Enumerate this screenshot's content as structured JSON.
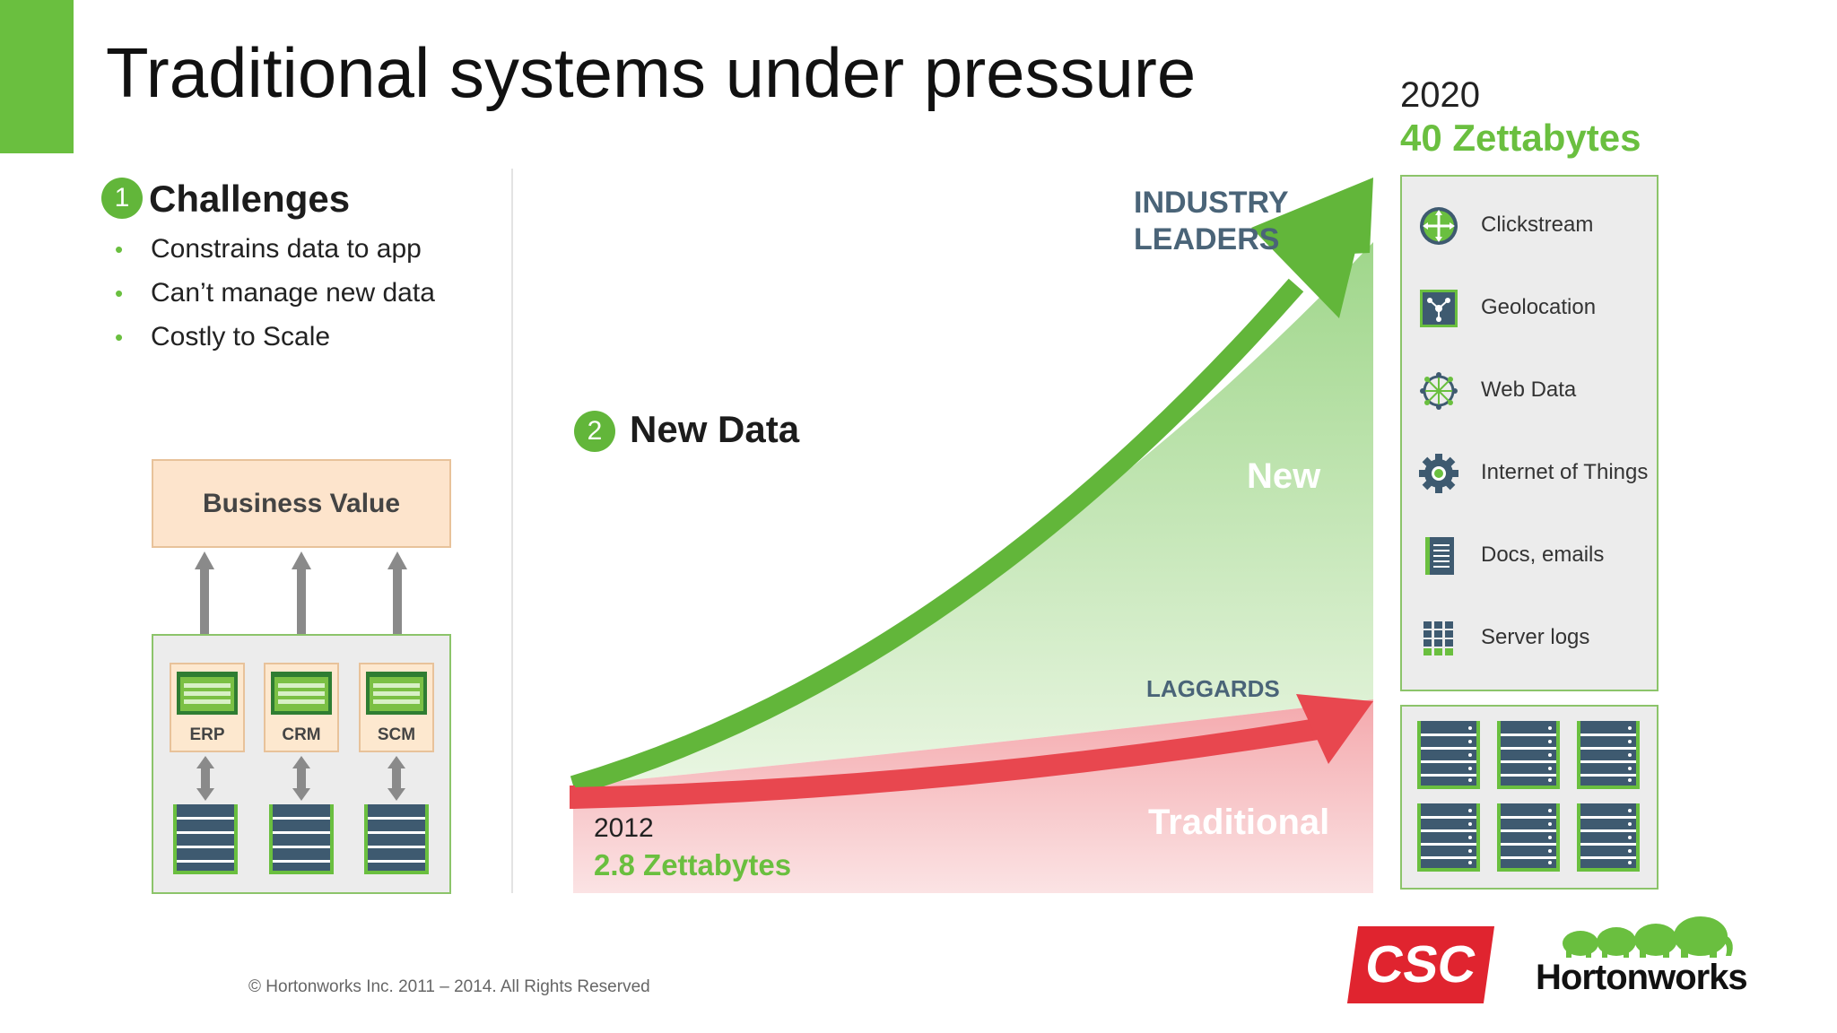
{
  "title": "Traditional systems under pressure",
  "challenges": {
    "number": "1",
    "heading": "Challenges",
    "items": [
      "Constrains data to app",
      "Can’t manage new data",
      "Costly to Scale"
    ]
  },
  "business_value": "Business Value",
  "apps": [
    "ERP",
    "CRM",
    "SCM"
  ],
  "new_data": {
    "number": "2",
    "heading": "New Data"
  },
  "start": {
    "year": "2012",
    "amount": "2.8 Zettabytes"
  },
  "end": {
    "year": "2020",
    "amount": "40 Zettabytes"
  },
  "curve_labels": {
    "industry_leaders": [
      "INDUSTRY",
      "LEADERS"
    ],
    "laggards": "LAGGARDS",
    "new": "New",
    "traditional": "Traditional"
  },
  "sources": [
    {
      "icon": "clickstream-icon",
      "label": "Clickstream"
    },
    {
      "icon": "geolocation-icon",
      "label": "Geolocation"
    },
    {
      "icon": "web-data-icon",
      "label": "Web Data"
    },
    {
      "icon": "iot-gear-icon",
      "label": "Internet of Things"
    },
    {
      "icon": "docs-icon",
      "label": "Docs, emails"
    },
    {
      "icon": "server-logs-icon",
      "label": "Server logs"
    }
  ],
  "footer": "© Hortonworks Inc. 2011 – 2014. All Rights Reserved",
  "logos": {
    "csc": "CSC",
    "hortonworks": "Hortonworks"
  },
  "colors": {
    "accent": "#6abf3f",
    "red": "#e8474f",
    "slate": "#4a6478"
  }
}
